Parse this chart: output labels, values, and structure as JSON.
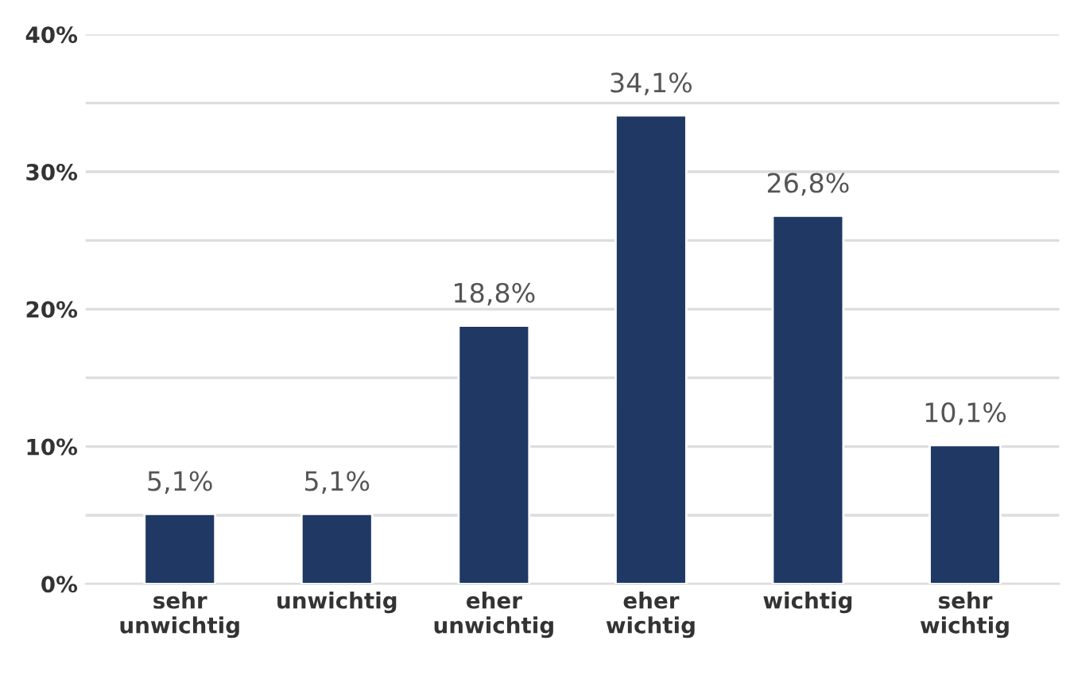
{
  "chart_data": {
    "type": "bar",
    "categories": [
      "sehr unwichtig",
      "unwichtig",
      "eher unwichtig",
      "eher wichtig",
      "wichtig",
      "sehr wichtig"
    ],
    "values": [
      5.1,
      5.1,
      18.8,
      34.1,
      26.8,
      10.1
    ],
    "value_labels": [
      "5,1%",
      "5,1%",
      "18,8%",
      "34,1%",
      "26,8%",
      "10,1%"
    ],
    "color": "#1f3864",
    "ylim": [
      0,
      40
    ],
    "yticks": [
      {
        "value": 0,
        "label": "0%"
      },
      {
        "value": 5,
        "label": null
      },
      {
        "value": 10,
        "label": "10%"
      },
      {
        "value": 15,
        "label": null
      },
      {
        "value": 20,
        "label": "20%"
      },
      {
        "value": 25,
        "label": null
      },
      {
        "value": 30,
        "label": "30%"
      },
      {
        "value": 35,
        "label": null
      },
      {
        "value": 40,
        "label": "40%"
      }
    ],
    "grid": "y"
  }
}
